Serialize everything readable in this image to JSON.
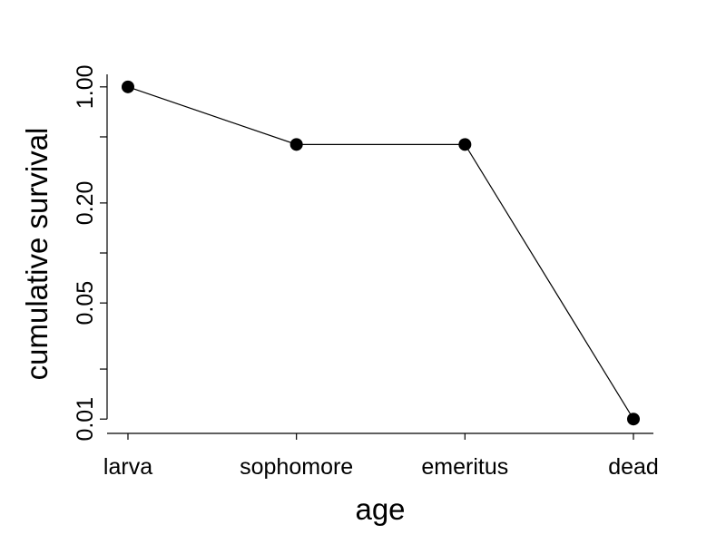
{
  "chart_data": {
    "type": "line",
    "categories": [
      "larva",
      "sophomore",
      "emeritus",
      "dead"
    ],
    "series": [
      {
        "values": [
          1.0,
          0.45,
          0.45,
          0.01
        ],
        "marker": "circle",
        "color": "#000000"
      }
    ],
    "xlabel": "age",
    "ylabel": "cumulative survival",
    "yscale": "log",
    "ylim": [
      0.0082,
      1.22
    ],
    "yticks": [
      0.01,
      0.02,
      0.05,
      0.1,
      0.2,
      0.5,
      1.0
    ],
    "ytick_labels": [
      "0.01",
      "",
      "0.05",
      "",
      "0.20",
      "",
      "1.00"
    ],
    "grid": false,
    "legend": "none"
  }
}
